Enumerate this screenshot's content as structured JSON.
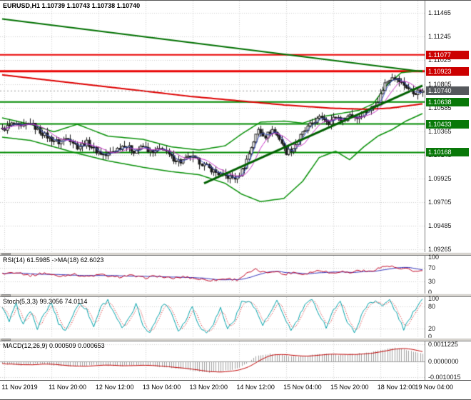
{
  "header": {
    "symbol_ohlc": "EURUSD,H1 1.10739 1.10743 1.10738 1.10740"
  },
  "colors": {
    "grid": "#cdcdcd",
    "candle": "#1a1a1a",
    "bollinger": "#089008",
    "ma_red": "#dd0000",
    "ma_blue": "#3c50c8",
    "ma_magenta": "#c832c8",
    "trend_green": "#006a00",
    "hline_red": "#e80000",
    "hline_green": "#008a00",
    "rsi": "#c00020",
    "rsi_ma": "#3333bb",
    "stoch": "#00a0a8",
    "stoch_signal": "#d00000",
    "macd_hist": "#a0a0a0",
    "macd_signal": "#c00000",
    "badge_red": "#cc0000",
    "badge_green": "#087808",
    "badge_current": "#55585c"
  },
  "price_axis": {
    "labels": [
      "1.11465",
      "1.11245",
      "1.11025",
      "1.10805",
      "1.10585",
      "1.10365",
      "1.10145",
      "1.09925",
      "1.09705",
      "1.09485",
      "1.09265"
    ],
    "values": [
      1.11465,
      1.11245,
      1.11025,
      1.10805,
      1.10585,
      1.10365,
      1.10145,
      1.09925,
      1.09705,
      1.09485,
      1.09265
    ],
    "badges": [
      {
        "text": "1.11077",
        "value": 1.11077,
        "bg": "#cc0000"
      },
      {
        "text": "1.10923",
        "value": 1.10923,
        "bg": "#cc0000"
      },
      {
        "text": "1.10740",
        "value": 1.1074,
        "bg": "#55585c"
      },
      {
        "text": "1.10638",
        "value": 1.10638,
        "bg": "#087808"
      },
      {
        "text": "1.10433",
        "value": 1.10433,
        "bg": "#087808"
      },
      {
        "text": "1.10168",
        "value": 1.10168,
        "bg": "#087808"
      }
    ]
  },
  "time_axis": {
    "labels": [
      "11 Nov 2019",
      "11 Nov 20:00",
      "12 Nov 12:00",
      "13 Nov 04:00",
      "13 Nov 20:00",
      "14 Nov 12:00",
      "15 Nov 04:00",
      "15 Nov 20:00",
      "18 Nov 12:00",
      "19 Nov 04:00"
    ],
    "bars": [
      1,
      21,
      41,
      61,
      81,
      101,
      121,
      141,
      161,
      177
    ]
  },
  "panels": {
    "rsi": {
      "label": "RSI(14) 61.5985 ->MA(18) 62.6023",
      "axis_labels": [
        "100",
        "70",
        "30",
        "0"
      ],
      "axis_values": [
        100,
        70,
        30,
        0
      ]
    },
    "stoch": {
      "label": "Stoch(5,3,3) 99.3056 74.0114",
      "axis_labels": [
        "100",
        "80",
        "20",
        "0"
      ],
      "axis_values": [
        100,
        80,
        20,
        0
      ]
    },
    "macd": {
      "label": "MACD(12,26,9) 0.000509 0.000653",
      "axis_labels": [
        "0.0011225",
        "0.0000000",
        "-0.0010015"
      ],
      "axis_values": [
        0.0011225,
        0,
        -0.0010015
      ]
    }
  },
  "chart_data": [
    {
      "type": "candlestick",
      "title": "EURUSD H1 price",
      "bars": 180,
      "y_range": [
        1.0924,
        1.1158
      ],
      "ohlc_current": {
        "open": 1.10739,
        "high": 1.10743,
        "low": 1.10738,
        "close": 1.1074
      },
      "current_price": 1.1074,
      "close_keyframes": [
        [
          0,
          1.1038
        ],
        [
          4,
          1.1043
        ],
        [
          8,
          1.104
        ],
        [
          12,
          1.1044
        ],
        [
          16,
          1.1036
        ],
        [
          20,
          1.103
        ],
        [
          24,
          1.1026
        ],
        [
          28,
          1.1031
        ],
        [
          32,
          1.1022
        ],
        [
          36,
          1.1026
        ],
        [
          40,
          1.1018
        ],
        [
          44,
          1.1014
        ],
        [
          48,
          1.1019
        ],
        [
          52,
          1.1024
        ],
        [
          56,
          1.1018
        ],
        [
          60,
          1.1022
        ],
        [
          64,
          1.1016
        ],
        [
          68,
          1.1021
        ],
        [
          72,
          1.1012
        ],
        [
          76,
          1.1008
        ],
        [
          80,
          1.1013
        ],
        [
          84,
          1.1008
        ],
        [
          88,
          1.1002
        ],
        [
          92,
          1.0997
        ],
        [
          96,
          1.0994
        ],
        [
          100,
          1.0993
        ],
        [
          103,
          1.1004
        ],
        [
          106,
          1.1022
        ],
        [
          109,
          1.1038
        ],
        [
          112,
          1.1032
        ],
        [
          115,
          1.1038
        ],
        [
          118,
          1.103
        ],
        [
          121,
          1.1017
        ],
        [
          124,
          1.1021
        ],
        [
          127,
          1.1032
        ],
        [
          130,
          1.104
        ],
        [
          133,
          1.1046
        ],
        [
          136,
          1.105
        ],
        [
          139,
          1.1045
        ],
        [
          142,
          1.105
        ],
        [
          145,
          1.1047
        ],
        [
          148,
          1.1052
        ],
        [
          151,
          1.1049
        ],
        [
          154,
          1.1054
        ],
        [
          157,
          1.1058
        ],
        [
          160,
          1.1065
        ],
        [
          163,
          1.1081
        ],
        [
          166,
          1.1088
        ],
        [
          169,
          1.1083
        ],
        [
          172,
          1.1078
        ],
        [
          175,
          1.1072
        ],
        [
          179,
          1.1074
        ]
      ],
      "overlays": {
        "bollinger_upper": [
          [
            0,
            1.1049
          ],
          [
            12,
            1.1043
          ],
          [
            22,
            1.1036
          ],
          [
            32,
            1.1043
          ],
          [
            45,
            1.1032
          ],
          [
            60,
            1.1029
          ],
          [
            72,
            1.1022
          ],
          [
            84,
            1.1019
          ],
          [
            95,
            1.1023
          ],
          [
            102,
            1.1034
          ],
          [
            110,
            1.1045
          ],
          [
            120,
            1.1046
          ],
          [
            128,
            1.1044
          ],
          [
            136,
            1.105
          ],
          [
            144,
            1.1053
          ],
          [
            152,
            1.1056
          ],
          [
            158,
            1.1062
          ],
          [
            164,
            1.108
          ],
          [
            170,
            1.1091
          ],
          [
            179,
            1.1093
          ]
        ],
        "bollinger_lower": [
          [
            0,
            1.1031
          ],
          [
            12,
            1.1028
          ],
          [
            22,
            1.1022
          ],
          [
            32,
            1.1016
          ],
          [
            45,
            1.1009
          ],
          [
            60,
            1.1003
          ],
          [
            72,
            1.0999
          ],
          [
            84,
            1.0996
          ],
          [
            95,
            1.0988
          ],
          [
            102,
            1.0978
          ],
          [
            110,
            1.0971
          ],
          [
            120,
            1.0974
          ],
          [
            128,
            1.099
          ],
          [
            135,
            1.1012
          ],
          [
            142,
            1.1018
          ],
          [
            148,
            1.101
          ],
          [
            154,
            1.1022
          ],
          [
            160,
            1.1032
          ],
          [
            166,
            1.1038
          ],
          [
            172,
            1.1046
          ],
          [
            179,
            1.1053
          ]
        ],
        "ma_red": [
          [
            0,
            1.1089
          ],
          [
            20,
            1.1084
          ],
          [
            40,
            1.1079
          ],
          [
            60,
            1.1074
          ],
          [
            80,
            1.1069
          ],
          [
            100,
            1.1065
          ],
          [
            120,
            1.1061
          ],
          [
            140,
            1.1058
          ],
          [
            155,
            1.1057
          ],
          [
            165,
            1.1058
          ],
          [
            172,
            1.106
          ],
          [
            179,
            1.1062
          ]
        ]
      },
      "trendlines": [
        {
          "from": [
            0,
            1.1141
          ],
          "to": [
            179,
            1.1092
          ],
          "color": "#007000",
          "width": 2
        },
        {
          "from": [
            86,
            1.0988
          ],
          "to": [
            179,
            1.1079
          ],
          "color": "#006000",
          "width": 3
        }
      ],
      "hlines": [
        {
          "price": 1.11077,
          "color": "#e80000",
          "width": 2
        },
        {
          "price": 1.10923,
          "color": "#e80000",
          "width": 3
        },
        {
          "price": 1.10638,
          "color": "#008a00",
          "width": 2
        },
        {
          "price": 1.10433,
          "color": "#008a00",
          "width": 2
        },
        {
          "price": 1.10168,
          "color": "#008a00",
          "width": 2
        }
      ]
    },
    {
      "type": "line",
      "title": "RSI(14) with MA(18)",
      "y_range": [
        -4,
        104
      ],
      "levels": [
        70,
        30
      ],
      "series": [
        {
          "name": "RSI(14)",
          "current": 61.5985,
          "keyframes": [
            [
              0,
              52
            ],
            [
              6,
              58
            ],
            [
              12,
              47
            ],
            [
              18,
              55
            ],
            [
              24,
              45
            ],
            [
              30,
              52
            ],
            [
              36,
              44
            ],
            [
              42,
              50
            ],
            [
              48,
              42
            ],
            [
              54,
              48
            ],
            [
              60,
              41
            ],
            [
              66,
              46
            ],
            [
              72,
              39
            ],
            [
              78,
              44
            ],
            [
              84,
              37
            ],
            [
              90,
              34
            ],
            [
              96,
              39
            ],
            [
              100,
              35
            ],
            [
              104,
              52
            ],
            [
              108,
              64
            ],
            [
              112,
              55
            ],
            [
              116,
              61
            ],
            [
              120,
              50
            ],
            [
              124,
              57
            ],
            [
              128,
              51
            ],
            [
              132,
              58
            ],
            [
              136,
              63
            ],
            [
              140,
              54
            ],
            [
              144,
              60
            ],
            [
              148,
              55
            ],
            [
              152,
              63
            ],
            [
              156,
              58
            ],
            [
              160,
              68
            ],
            [
              164,
              75
            ],
            [
              167,
              71
            ],
            [
              170,
              64
            ],
            [
              173,
              67
            ],
            [
              176,
              58
            ],
            [
              179,
              61.6
            ]
          ]
        },
        {
          "name": "MA(18)",
          "current": 62.6023
        }
      ]
    },
    {
      "type": "line",
      "title": "Stochastic(5,3,3)",
      "y_range": [
        -4,
        104
      ],
      "levels": [
        80,
        20
      ],
      "series": [
        {
          "name": "Main",
          "current": 99.3056,
          "keyframes": [
            [
              0,
              75
            ],
            [
              3,
              40
            ],
            [
              6,
              85
            ],
            [
              9,
              30
            ],
            [
              12,
              70
            ],
            [
              15,
              20
            ],
            [
              18,
              60
            ],
            [
              21,
              88
            ],
            [
              24,
              35
            ],
            [
              27,
              15
            ],
            [
              30,
              55
            ],
            [
              33,
              90
            ],
            [
              36,
              70
            ],
            [
              39,
              25
            ],
            [
              42,
              80
            ],
            [
              45,
              95
            ],
            [
              48,
              60
            ],
            [
              51,
              20
            ],
            [
              54,
              45
            ],
            [
              57,
              85
            ],
            [
              60,
              30
            ],
            [
              63,
              10
            ],
            [
              66,
              50
            ],
            [
              69,
              90
            ],
            [
              72,
              65
            ],
            [
              75,
              15
            ],
            [
              78,
              40
            ],
            [
              81,
              80
            ],
            [
              84,
              25
            ],
            [
              87,
              10
            ],
            [
              90,
              35
            ],
            [
              93,
              75
            ],
            [
              96,
              20
            ],
            [
              99,
              45
            ],
            [
              102,
              90
            ],
            [
              105,
              97
            ],
            [
              108,
              70
            ],
            [
              111,
              30
            ],
            [
              114,
              60
            ],
            [
              117,
              92
            ],
            [
              120,
              55
            ],
            [
              123,
              15
            ],
            [
              126,
              45
            ],
            [
              129,
              85
            ],
            [
              132,
              95
            ],
            [
              135,
              60
            ],
            [
              138,
              25
            ],
            [
              141,
              70
            ],
            [
              144,
              90
            ],
            [
              147,
              40
            ],
            [
              150,
              10
            ],
            [
              153,
              55
            ],
            [
              156,
              88
            ],
            [
              159,
              95
            ],
            [
              162,
              80
            ],
            [
              165,
              97
            ],
            [
              168,
              60
            ],
            [
              171,
              20
            ],
            [
              174,
              50
            ],
            [
              177,
              85
            ],
            [
              179,
              99.3
            ]
          ]
        },
        {
          "name": "Signal",
          "current": 74.0114
        }
      ]
    },
    {
      "type": "bar",
      "title": "MACD(12,26,9)",
      "y_range": [
        -0.001187,
        0.001307
      ],
      "series": [
        {
          "name": "MACD",
          "current": 0.000509,
          "keyframes": [
            [
              0,
              -0.00015
            ],
            [
              8,
              -0.00022
            ],
            [
              16,
              -0.00012
            ],
            [
              24,
              -0.00026
            ],
            [
              32,
              -0.0003
            ],
            [
              40,
              -0.0002
            ],
            [
              48,
              -0.00028
            ],
            [
              56,
              -0.00022
            ],
            [
              64,
              -0.0003
            ],
            [
              72,
              -0.0004
            ],
            [
              80,
              -0.00055
            ],
            [
              88,
              -0.0007
            ],
            [
              94,
              -0.00062
            ],
            [
              100,
              -0.00045
            ],
            [
              104,
              -0.0001
            ],
            [
              108,
              0.00035
            ],
            [
              114,
              0.0005
            ],
            [
              120,
              0.0004
            ],
            [
              126,
              0.00035
            ],
            [
              132,
              0.00045
            ],
            [
              138,
              0.0005
            ],
            [
              144,
              0.00042
            ],
            [
              150,
              0.0005
            ],
            [
              156,
              0.00058
            ],
            [
              162,
              0.00078
            ],
            [
              166,
              0.0009
            ],
            [
              170,
              0.00082
            ],
            [
              174,
              0.0007
            ],
            [
              179,
              0.000509
            ]
          ]
        },
        {
          "name": "Signal",
          "current": 0.000653
        }
      ]
    }
  ]
}
